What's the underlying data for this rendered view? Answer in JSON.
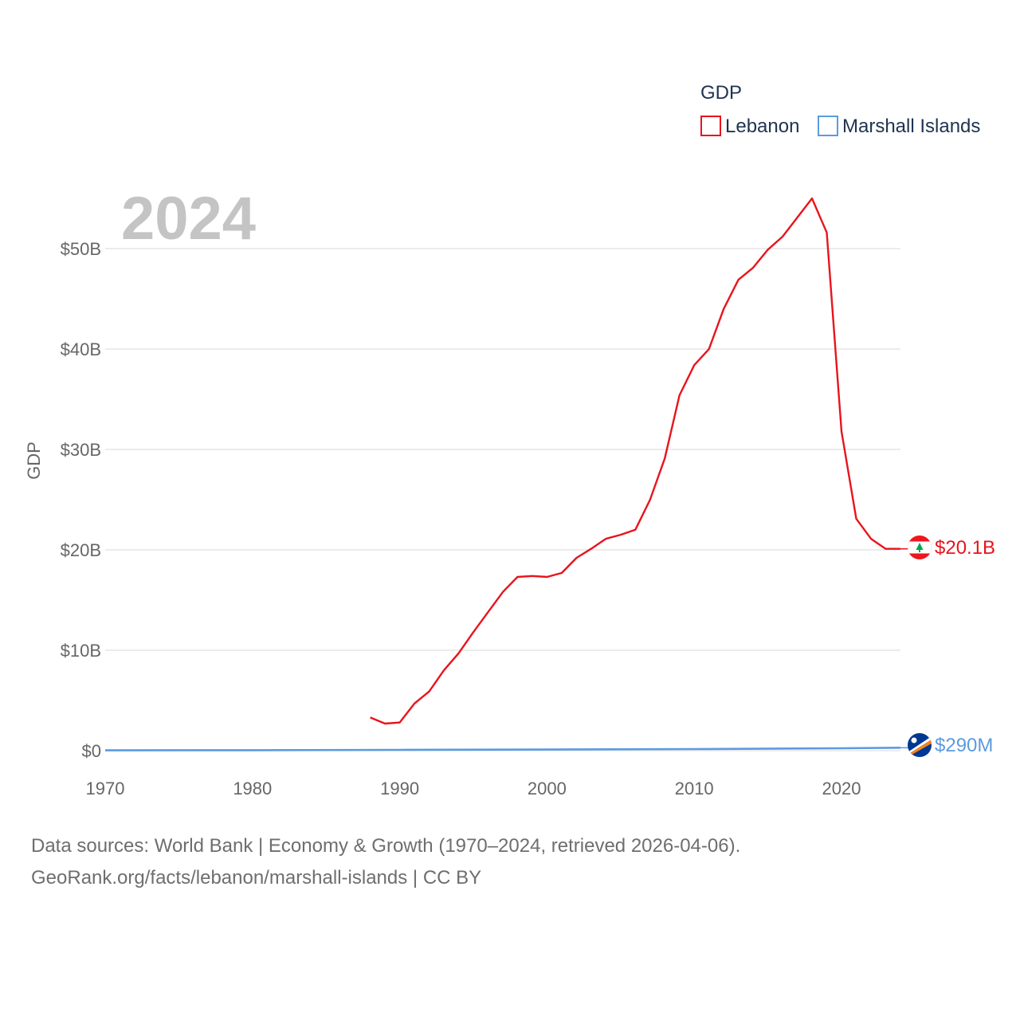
{
  "chart_data": {
    "type": "line",
    "year_label": "2024",
    "ylabel": "GDP",
    "legend_title": "GDP",
    "xlim": [
      1970,
      2024
    ],
    "ylim": [
      0,
      55000000000
    ],
    "x_ticks": [
      1970,
      1980,
      1990,
      2000,
      2010,
      2020
    ],
    "y_ticks": [
      {
        "value": 0,
        "label": "$0"
      },
      {
        "value": 10000000000,
        "label": "$10B"
      },
      {
        "value": 20000000000,
        "label": "$20B"
      },
      {
        "value": 30000000000,
        "label": "$30B"
      },
      {
        "value": 40000000000,
        "label": "$40B"
      },
      {
        "value": 50000000000,
        "label": "$50B"
      }
    ],
    "series": [
      {
        "name": "Lebanon",
        "color": "#e8141c",
        "end_label": "$20.1B",
        "flag": "lebanon-flag-icon",
        "points": [
          [
            1988,
            3.3
          ],
          [
            1989,
            2.7
          ],
          [
            1990,
            2.8
          ],
          [
            1991,
            4.7
          ],
          [
            1992,
            5.9
          ],
          [
            1993,
            8.0
          ],
          [
            1994,
            9.7
          ],
          [
            1995,
            11.8
          ],
          [
            1996,
            13.8
          ],
          [
            1997,
            15.8
          ],
          [
            1998,
            17.3
          ],
          [
            1999,
            17.4
          ],
          [
            2000,
            17.3
          ],
          [
            2001,
            17.7
          ],
          [
            2002,
            19.2
          ],
          [
            2003,
            20.1
          ],
          [
            2004,
            21.1
          ],
          [
            2005,
            21.5
          ],
          [
            2006,
            22.0
          ],
          [
            2007,
            25.0
          ],
          [
            2008,
            29.1
          ],
          [
            2009,
            35.4
          ],
          [
            2010,
            38.4
          ],
          [
            2011,
            40.0
          ],
          [
            2012,
            44.0
          ],
          [
            2013,
            46.9
          ],
          [
            2014,
            48.1
          ],
          [
            2015,
            49.9
          ],
          [
            2016,
            51.2
          ],
          [
            2017,
            53.1
          ],
          [
            2018,
            55.0
          ],
          [
            2019,
            51.6
          ],
          [
            2020,
            31.8
          ],
          [
            2021,
            23.1
          ],
          [
            2022,
            21.1
          ],
          [
            2023,
            20.1
          ],
          [
            2024,
            20.1
          ]
        ]
      },
      {
        "name": "Marshall Islands",
        "color": "#5b9be0",
        "end_label": "$290M",
        "flag": "marshall-islands-flag-icon",
        "points": [
          [
            1970,
            0.03
          ],
          [
            1980,
            0.05
          ],
          [
            1990,
            0.08
          ],
          [
            2000,
            0.11
          ],
          [
            2010,
            0.16
          ],
          [
            2020,
            0.24
          ],
          [
            2024,
            0.29
          ]
        ]
      }
    ]
  },
  "source": {
    "line1": "Data sources: World Bank | Economy & Growth (1970–2024, retrieved 2026-04-06).",
    "line2": "GeoRank.org/facts/lebanon/marshall-islands | CC BY"
  }
}
